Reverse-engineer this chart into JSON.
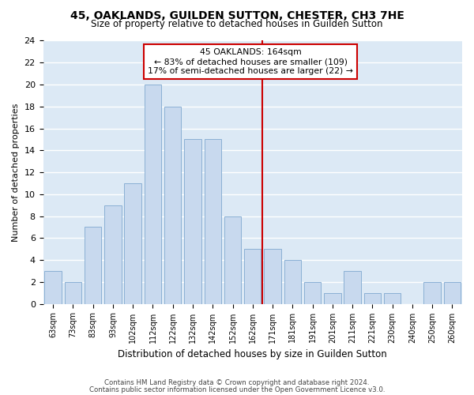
{
  "title": "45, OAKLANDS, GUILDEN SUTTON, CHESTER, CH3 7HE",
  "subtitle": "Size of property relative to detached houses in Guilden Sutton",
  "xlabel": "Distribution of detached houses by size in Guilden Sutton",
  "ylabel": "Number of detached properties",
  "footnote1": "Contains HM Land Registry data © Crown copyright and database right 2024.",
  "footnote2": "Contains public sector information licensed under the Open Government Licence v3.0.",
  "categories": [
    "63sqm",
    "73sqm",
    "83sqm",
    "93sqm",
    "102sqm",
    "112sqm",
    "122sqm",
    "132sqm",
    "142sqm",
    "152sqm",
    "162sqm",
    "171sqm",
    "181sqm",
    "191sqm",
    "201sqm",
    "211sqm",
    "221sqm",
    "230sqm",
    "240sqm",
    "250sqm",
    "260sqm"
  ],
  "values": [
    3,
    2,
    7,
    9,
    11,
    20,
    18,
    15,
    15,
    8,
    5,
    5,
    4,
    2,
    1,
    3,
    1,
    1,
    0,
    2,
    2
  ],
  "bar_color": "#c8d9ee",
  "bar_edgecolor": "#8ab0d4",
  "property_line_color": "#cc0000",
  "annotation_title": "45 OAKLANDS: 164sqm",
  "annotation_line1": "← 83% of detached houses are smaller (109)",
  "annotation_line2": "17% of semi-detached houses are larger (22) →",
  "annotation_box_color": "#cc0000",
  "ylim": [
    0,
    24
  ],
  "fig_background": "#ffffff",
  "plot_background": "#dce9f5",
  "grid_color": "#ffffff"
}
